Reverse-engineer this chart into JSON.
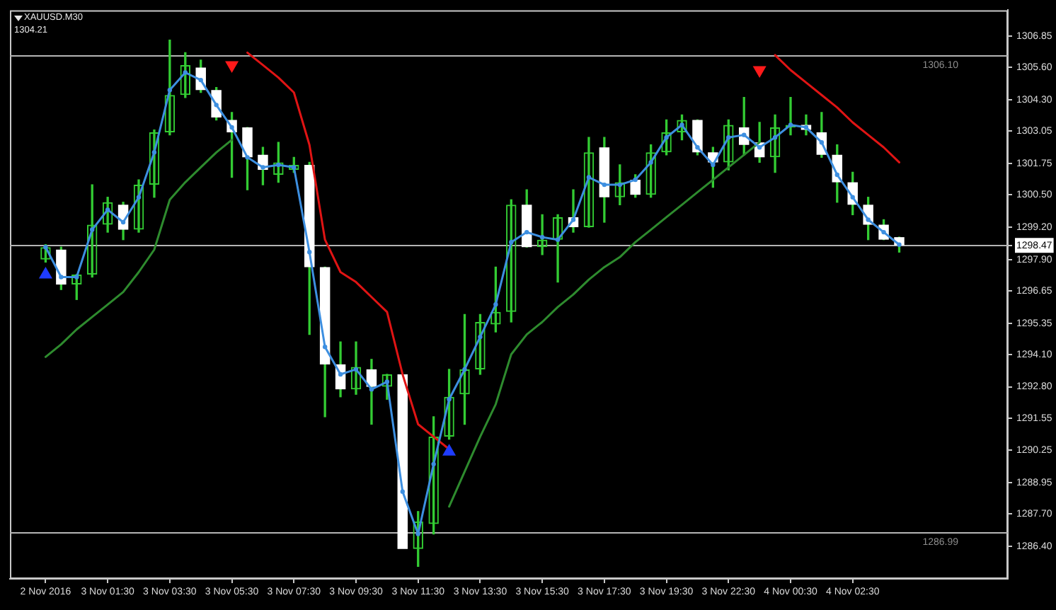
{
  "chart_data": {
    "type": "candlestick",
    "title": "XAUUSD.M30",
    "subtitle": "1304.21",
    "categories": [
      "2 Nov 2016",
      null,
      null,
      null,
      "3 Nov 01:30",
      null,
      null,
      null,
      "3 Nov 03:30",
      null,
      null,
      null,
      "3 Nov 05:30",
      null,
      null,
      null,
      "3 Nov 07:30",
      null,
      null,
      null,
      "3 Nov 09:30",
      null,
      null,
      null,
      "3 Nov 11:30",
      null,
      null,
      null,
      "3 Nov 13:30",
      null,
      null,
      null,
      "3 Nov 15:30",
      null,
      null,
      null,
      "3 Nov 17:30",
      null,
      null,
      null,
      "3 Nov 19:30",
      null,
      null,
      null,
      "3 Nov 22:30",
      null,
      null,
      null,
      "4 Nov 00:30",
      null,
      null,
      null,
      "4 Nov 02:30",
      null,
      null,
      null
    ],
    "series": [
      {
        "color": "#33cc33",
        "colors": [
          "#33cc33",
          "#ffffff",
          "#33cc33",
          "#33cc33",
          "#33cc33",
          "#ffffff",
          "#33cc33",
          "#33cc33",
          "#33cc33",
          "#33cc33",
          "#ffffff",
          "#ffffff",
          "#ffffff",
          "#ffffff",
          "#ffffff",
          "#33cc33",
          "#33cc33",
          "#ffffff",
          "#ffffff",
          "#ffffff",
          "#33cc33",
          "#ffffff",
          "#33cc33",
          "#ffffff",
          "#33cc33",
          "#33cc33",
          "#33cc33",
          "#33cc33",
          "#33cc33",
          "#33cc33",
          "#33cc33",
          "#ffffff",
          "#33cc33",
          "#33cc33",
          "#ffffff",
          "#33cc33",
          "#ffffff",
          "#33cc33",
          "#ffffff",
          "#33cc33",
          "#33cc33",
          "#33cc33",
          "#ffffff",
          "#ffffff",
          "#33cc33",
          "#ffffff",
          "#ffffff",
          "#33cc33",
          "#33cc33",
          "#ffffff",
          "#ffffff",
          "#ffffff",
          "#ffffff",
          "#ffffff",
          "#ffffff",
          "#ffffff"
        ],
        "ohlc": [
          [
            1297.9,
            1298.5,
            1297.8,
            1298.4
          ],
          [
            1298.3,
            1298.4,
            1296.7,
            1296.9
          ],
          [
            1296.9,
            1297.3,
            1296.3,
            1297.3
          ],
          [
            1297.3,
            1300.9,
            1297.2,
            1299.3
          ],
          [
            1299.3,
            1300.4,
            1299.0,
            1300.2
          ],
          [
            1300.1,
            1300.2,
            1298.7,
            1299.1
          ],
          [
            1299.1,
            1301.1,
            1299.0,
            1300.9
          ],
          [
            1300.9,
            1303.1,
            1300.4,
            1303.0
          ],
          [
            1303.0,
            1306.7,
            1302.9,
            1304.5
          ],
          [
            1304.5,
            1306.2,
            1304.4,
            1305.7
          ],
          [
            1305.6,
            1305.9,
            1304.6,
            1304.7
          ],
          [
            1304.7,
            1304.8,
            1303.5,
            1303.6
          ],
          [
            1303.5,
            1303.8,
            1301.2,
            1303.0
          ],
          [
            1303.2,
            1303.2,
            1300.7,
            1302.0
          ],
          [
            1302.1,
            1302.4,
            1300.9,
            1301.5
          ],
          [
            1301.3,
            1302.6,
            1301.0,
            1301.8
          ],
          [
            1301.5,
            1302.0,
            1301.4,
            1301.7
          ],
          [
            1301.7,
            1301.8,
            1294.9,
            1297.6
          ],
          [
            1297.6,
            1297.6,
            1291.6,
            1293.7
          ],
          [
            1293.7,
            1294.6,
            1292.4,
            1292.7
          ],
          [
            1292.7,
            1294.6,
            1292.5,
            1293.6
          ],
          [
            1293.5,
            1293.9,
            1291.3,
            1292.8
          ],
          [
            1292.8,
            1293.3,
            1292.3,
            1293.3
          ],
          [
            1293.3,
            1293.3,
            1286.3,
            1286.3
          ],
          [
            1286.3,
            1287.8,
            1285.6,
            1287.4
          ],
          [
            1287.3,
            1291.6,
            1286.9,
            1290.8
          ],
          [
            1290.8,
            1293.5,
            1290.7,
            1292.4
          ],
          [
            1292.5,
            1295.7,
            1291.3,
            1293.5
          ],
          [
            1293.5,
            1295.7,
            1293.3,
            1295.4
          ],
          [
            1295.3,
            1297.6,
            1295.0,
            1295.8
          ],
          [
            1295.8,
            1300.3,
            1295.4,
            1300.1
          ],
          [
            1300.1,
            1300.7,
            1298.4,
            1298.4
          ],
          [
            1298.4,
            1299.7,
            1298.1,
            1298.7
          ],
          [
            1298.7,
            1299.7,
            1297.0,
            1299.6
          ],
          [
            1299.6,
            1300.7,
            1299.0,
            1299.2
          ],
          [
            1299.2,
            1302.8,
            1299.2,
            1302.2
          ],
          [
            1302.4,
            1302.8,
            1299.4,
            1300.4
          ],
          [
            1300.4,
            1301.7,
            1300.1,
            1301.0
          ],
          [
            1301.1,
            1301.3,
            1300.4,
            1300.5
          ],
          [
            1300.5,
            1302.5,
            1300.4,
            1302.2
          ],
          [
            1302.2,
            1303.5,
            1302.1,
            1303.0
          ],
          [
            1303.0,
            1303.7,
            1302.7,
            1303.5
          ],
          [
            1303.5,
            1303.5,
            1302.1,
            1302.2
          ],
          [
            1302.2,
            1302.4,
            1300.8,
            1301.8
          ],
          [
            1301.8,
            1303.5,
            1301.5,
            1303.3
          ],
          [
            1303.2,
            1304.4,
            1302.1,
            1302.5
          ],
          [
            1302.6,
            1303.4,
            1301.8,
            1302.0
          ],
          [
            1302.0,
            1303.7,
            1301.4,
            1303.2
          ],
          [
            1303.2,
            1304.4,
            1302.9,
            1303.3
          ],
          [
            1303.3,
            1303.7,
            1302.9,
            1303.1
          ],
          [
            1303.0,
            1303.8,
            1302.0,
            1302.1
          ],
          [
            1302.1,
            1302.5,
            1300.2,
            1301.0
          ],
          [
            1301.0,
            1301.4,
            1299.7,
            1300.1
          ],
          [
            1300.1,
            1300.4,
            1298.7,
            1299.3
          ],
          [
            1299.3,
            1299.5,
            1298.7,
            1298.7
          ],
          [
            1298.8,
            1298.8,
            1298.2,
            1298.47
          ]
        ]
      },
      {
        "type": "line",
        "color": "#3d8fe0",
        "marker": "circle",
        "values": [
          1298.4,
          1297.2,
          1297.2,
          1299.1,
          1299.9,
          1299.4,
          1300.4,
          1302.2,
          1304.7,
          1305.4,
          1305.1,
          1304.1,
          1303.2,
          1302.0,
          1301.6,
          1301.7,
          1301.6,
          1298.2,
          1294.4,
          1293.3,
          1293.5,
          1292.7,
          1293.0,
          1288.6,
          1286.9,
          1289.7,
          1292.3,
          1293.5,
          1294.8,
          1296.1,
          1298.6,
          1299.0,
          1298.8,
          1298.7,
          1299.5,
          1301.2,
          1300.9,
          1300.9,
          1301.1,
          1301.8,
          1302.8,
          1303.3,
          1302.4,
          1301.7,
          1302.8,
          1302.9,
          1302.4,
          1302.8,
          1303.3,
          1303.2,
          1302.6,
          1301.3,
          1300.4,
          1299.5,
          1299.0,
          1298.5
        ]
      },
      {
        "type": "line",
        "color": "#2e8b2e",
        "marker": "none",
        "values": [
          1294.0,
          1294.5,
          1295.1,
          1295.6,
          1296.1,
          1296.6,
          1297.4,
          1298.3,
          1300.3,
          1301.0,
          1301.6,
          1302.2,
          1302.7,
          null,
          null,
          null,
          null,
          null,
          null,
          null,
          null,
          null,
          null,
          null,
          null,
          null,
          1288.0,
          1289.4,
          1290.8,
          1292.1,
          1294.1,
          1294.9,
          1295.4,
          1296.0,
          1296.5,
          1297.1,
          1297.6,
          1298.0,
          1298.6,
          1299.1,
          1299.6,
          1300.1,
          1300.6,
          1301.1,
          1301.6,
          1302.1,
          1302.6,
          null,
          null,
          null,
          null,
          null,
          null,
          null,
          null,
          null
        ]
      },
      {
        "type": "line",
        "color": "#e01414",
        "marker": "none",
        "values": [
          null,
          null,
          null,
          null,
          null,
          null,
          null,
          null,
          null,
          null,
          null,
          null,
          null,
          1306.2,
          1305.7,
          1305.2,
          1304.6,
          1302.5,
          1298.7,
          1297.4,
          1297.0,
          1296.4,
          1295.8,
          1293.3,
          1291.3,
          1290.8,
          1290.3,
          null,
          null,
          null,
          null,
          null,
          null,
          null,
          null,
          null,
          null,
          null,
          null,
          null,
          null,
          null,
          null,
          null,
          null,
          null,
          null,
          1306.1,
          1305.5,
          1305.0,
          1304.5,
          1304.0,
          1303.4,
          1302.9,
          1302.4,
          1301.8
        ]
      },
      {
        "type": "scatter",
        "color": "#ff1a1a",
        "marker": "triangle",
        "values": [
          null,
          null,
          null,
          null,
          null,
          null,
          null,
          null,
          null,
          null,
          null,
          null,
          1305.7,
          null,
          null,
          null,
          null,
          null,
          null,
          null,
          null,
          null,
          null,
          null,
          null,
          null,
          null,
          null,
          null,
          null,
          null,
          null,
          null,
          null,
          null,
          null,
          null,
          null,
          null,
          null,
          null,
          null,
          null,
          null,
          null,
          null,
          1305.5,
          null,
          null,
          null,
          null,
          null,
          null,
          null,
          null,
          null
        ]
      },
      {
        "type": "scatter",
        "color": "#1f3cff",
        "marker": "triangle",
        "values": [
          1297.3,
          null,
          null,
          null,
          null,
          null,
          null,
          null,
          null,
          null,
          null,
          null,
          null,
          null,
          null,
          null,
          null,
          null,
          null,
          null,
          null,
          null,
          null,
          null,
          null,
          null,
          1290.2,
          null,
          null,
          null,
          null,
          null,
          null,
          null,
          null,
          null,
          null,
          null,
          null,
          null,
          null,
          null,
          null,
          null,
          null,
          null,
          null,
          null,
          null,
          null,
          null,
          null,
          null,
          null,
          null,
          null
        ]
      }
    ],
    "ylim": [
      1285.1,
      1307.9
    ],
    "yticks": [
      1306.85,
      {
        "value": 1305.6,
        "label": "1305.60"
      },
      {
        "value": 1304.3,
        "label": "1304.30"
      },
      1303.05,
      1301.75,
      {
        "value": 1300.5,
        "label": "1300.50"
      },
      {
        "value": 1299.2,
        "label": "1299.20"
      },
      1298.47,
      {
        "value": 1297.9,
        "label": "1297.90"
      },
      1296.65,
      1295.35,
      {
        "value": 1294.1,
        "label": "1294.10"
      },
      {
        "value": 1292.8,
        "label": "1292.80"
      },
      1291.55,
      1290.25,
      1288.95,
      {
        "value": 1287.7,
        "label": "1287.70"
      },
      {
        "value": 1286.4,
        "label": "1286.40"
      }
    ],
    "ref_lines": [
      {
        "axis": "y",
        "value": 1306.1,
        "label": "1306.10",
        "color": "#b4b4b4"
      },
      {
        "axis": "y",
        "value": 1286.99,
        "label": "1286.99",
        "color": "#b4b4b4"
      },
      {
        "axis": "y",
        "value": 1298.47,
        "color": "#b4b4b4"
      }
    ]
  }
}
